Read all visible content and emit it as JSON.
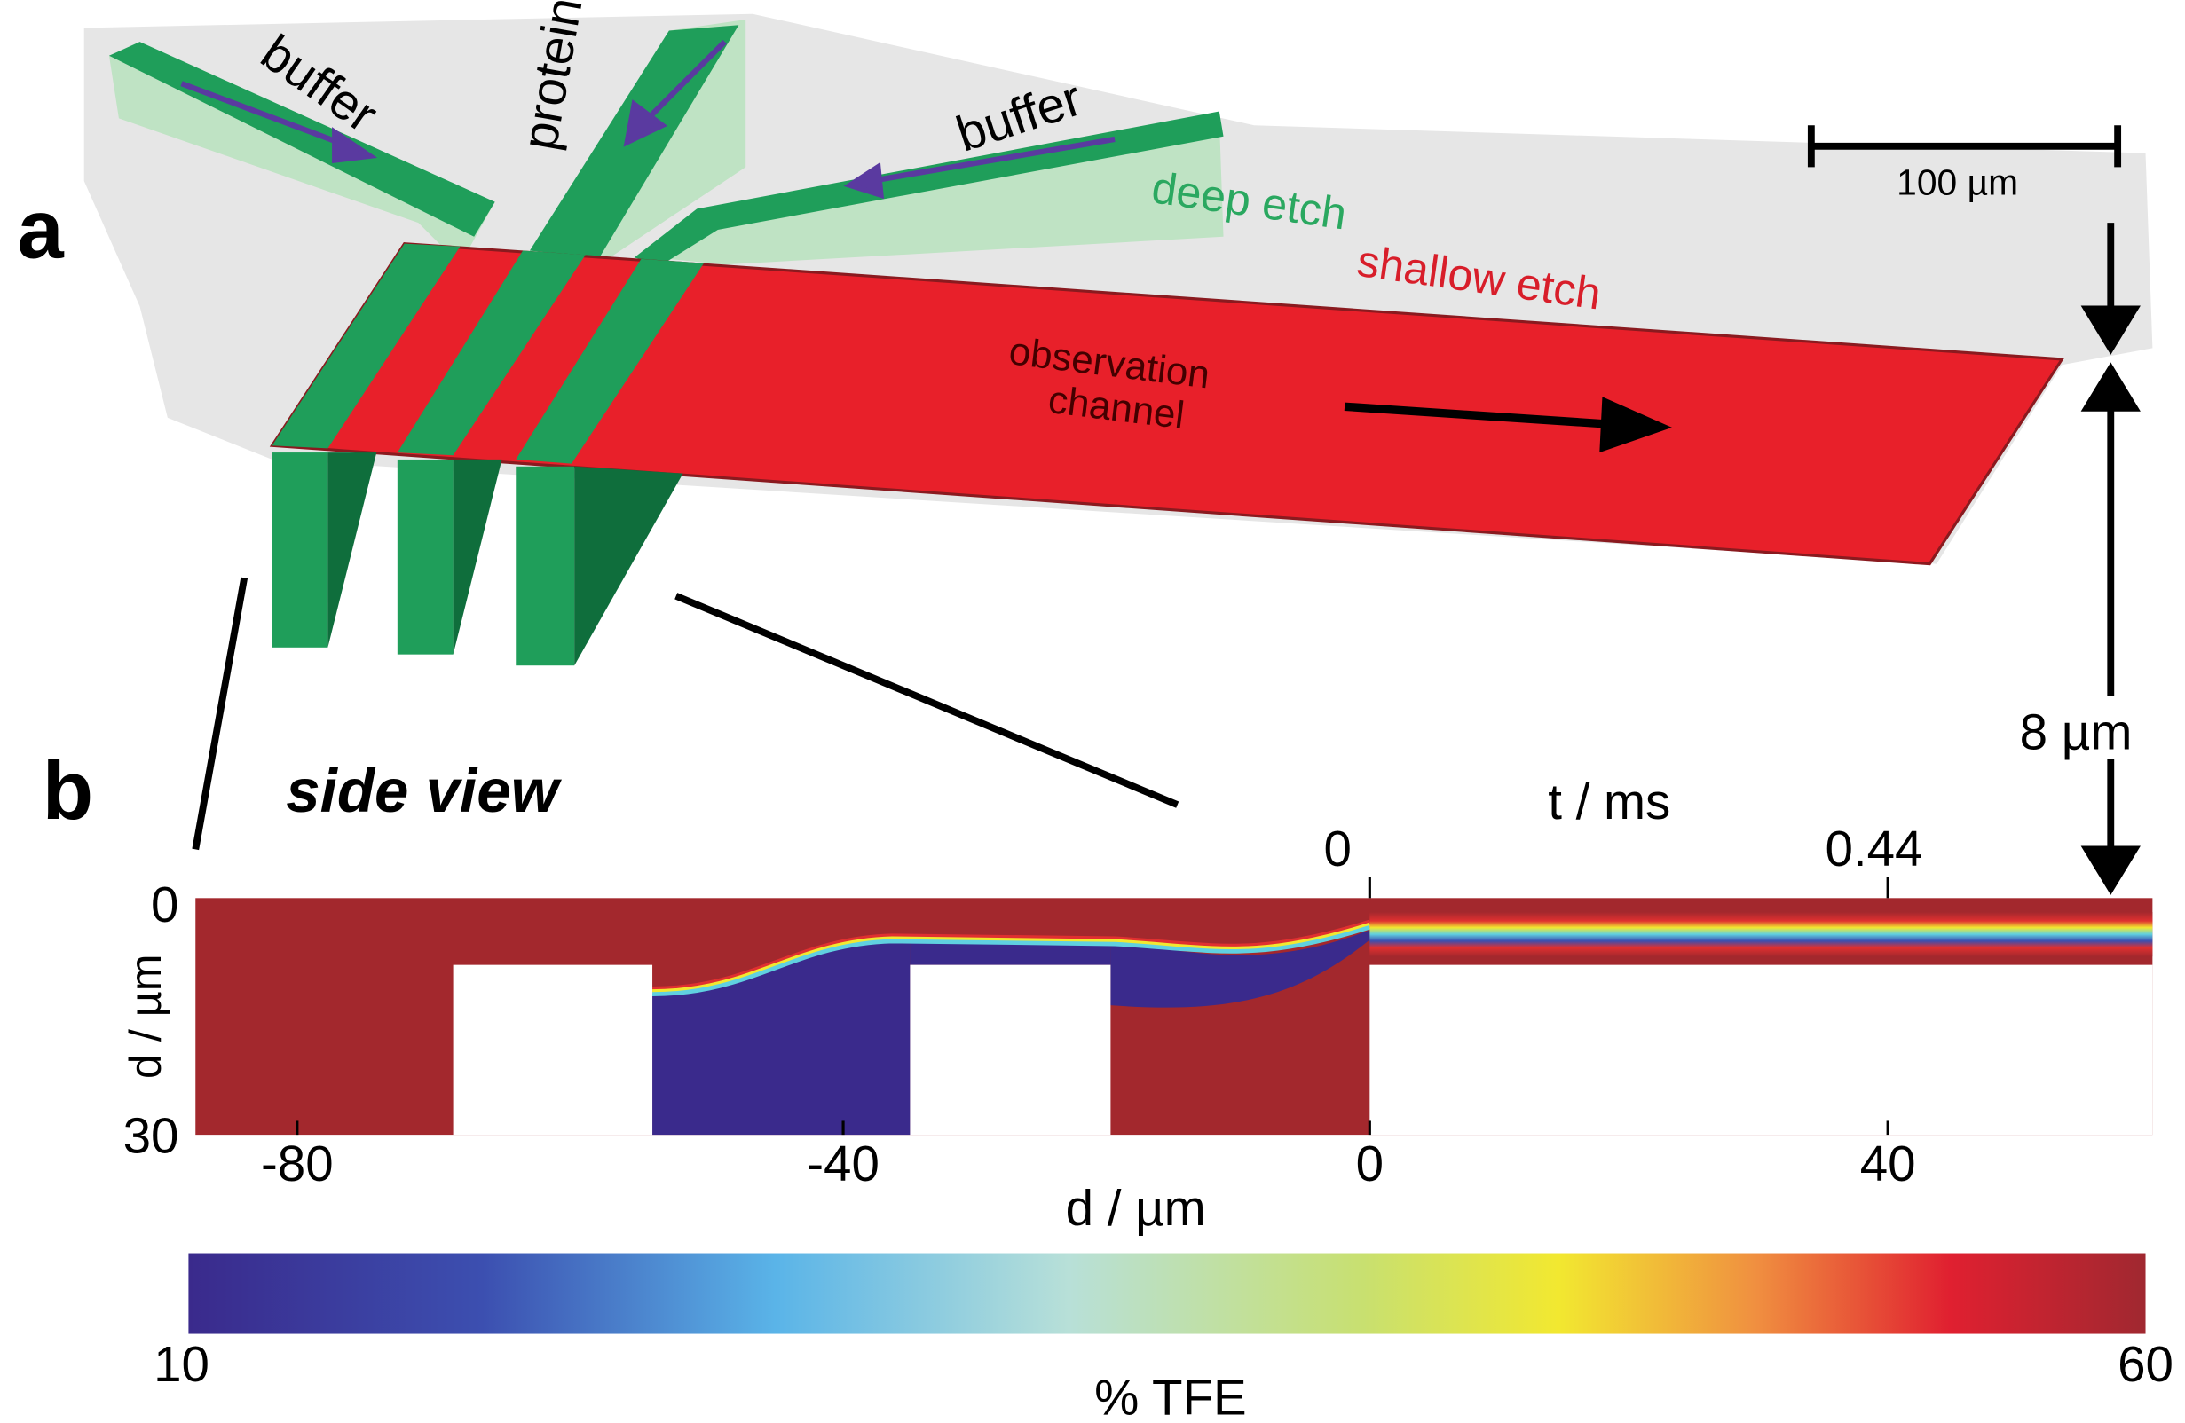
{
  "panel_a": {
    "label": "a",
    "inlets": [
      "buffer",
      "protein",
      "buffer"
    ],
    "deep_etch": "deep etch",
    "shallow_etch": "shallow etch",
    "observation_channel": [
      "observation",
      "channel"
    ],
    "scale_bar": "100 µm",
    "depth": "8 µm"
  },
  "panel_b": {
    "label": "b",
    "title": "side view",
    "time_axis": {
      "label": "t / ms",
      "ticks": [
        0,
        0.44
      ]
    },
    "x_axis": {
      "label": "d / µm",
      "ticks": [
        -80,
        -40,
        0,
        40
      ]
    },
    "y_axis": {
      "label": "d / µm",
      "ticks": [
        0,
        30
      ]
    },
    "colorbar": {
      "label": "% TFE",
      "ticks": [
        10,
        60
      ]
    }
  }
}
